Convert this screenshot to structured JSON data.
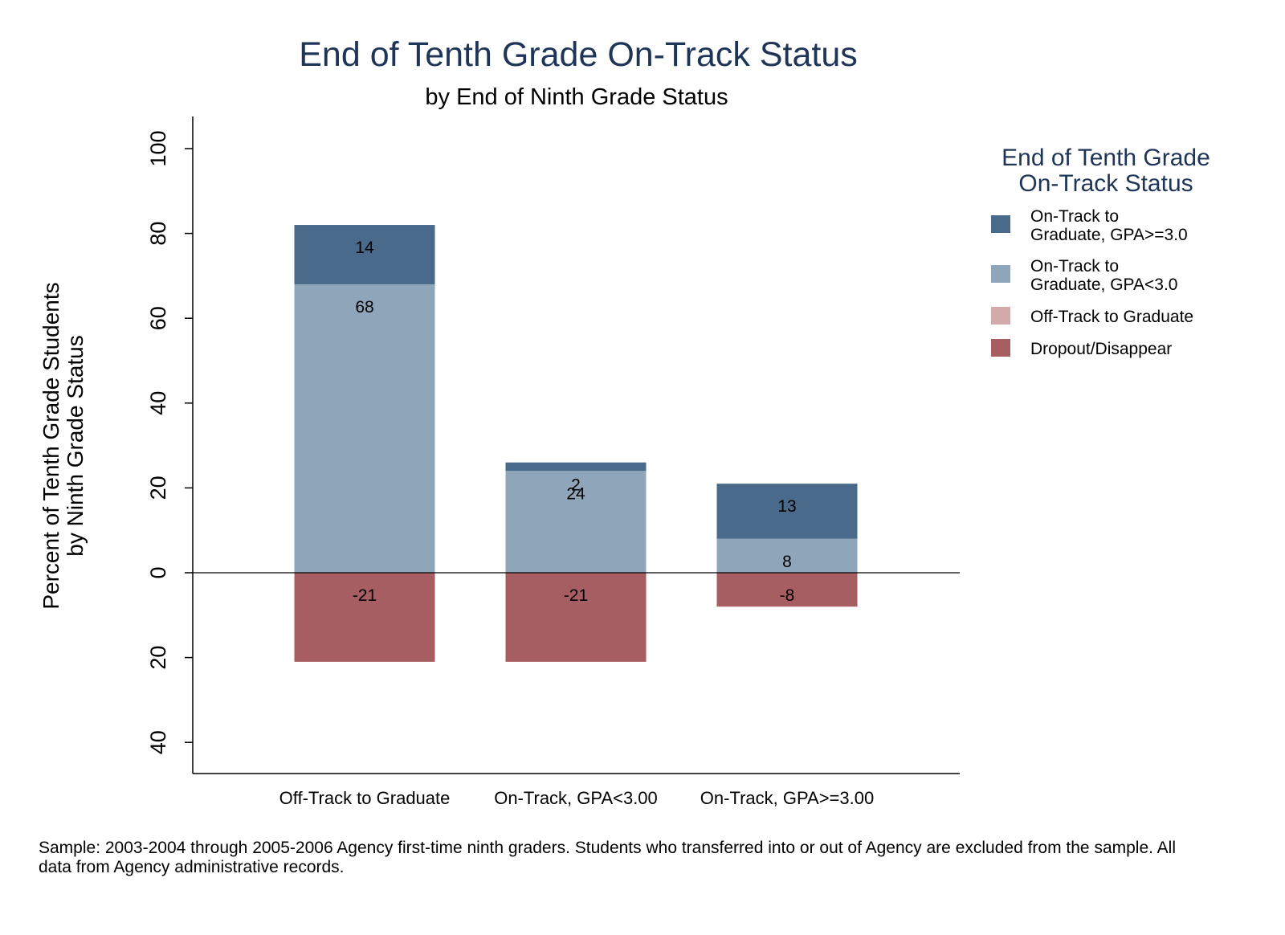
{
  "chart_data": {
    "type": "bar",
    "stacked": true,
    "title": "End of Tenth Grade On-Track Status",
    "subtitle": "by End of Ninth Grade Status",
    "ylabel": [
      "Percent of Tenth Grade Students",
      "by Ninth Grade Status"
    ],
    "xlabel": "",
    "ylim": [
      -48,
      108
    ],
    "yticks": [
      {
        "value": 100,
        "label": "100"
      },
      {
        "value": 80,
        "label": "80"
      },
      {
        "value": 60,
        "label": "60"
      },
      {
        "value": 40,
        "label": "40"
      },
      {
        "value": 20,
        "label": "20"
      },
      {
        "value": 0,
        "label": "0"
      },
      {
        "value": -20,
        "label": "20"
      },
      {
        "value": -40,
        "label": "40"
      }
    ],
    "categories": [
      "Off-Track to Graduate",
      "On-Track, GPA<3.00",
      "On-Track, GPA>=3.00"
    ],
    "series": [
      {
        "name": "On-Track to Graduate, GPA>=3.0",
        "legend_lines": [
          "On-Track to",
          "Graduate, GPA>=3.0"
        ],
        "color": "#4a6a8b",
        "values": [
          14,
          2,
          13
        ],
        "labels": [
          "14",
          "2",
          "13"
        ],
        "direction": "up"
      },
      {
        "name": "On-Track to Graduate, GPA<3.0",
        "legend_lines": [
          "On-Track to",
          "Graduate, GPA<3.0"
        ],
        "color": "#8fa5b9",
        "values": [
          68,
          24,
          8
        ],
        "labels": [
          "68",
          "24",
          "8"
        ],
        "direction": "up"
      },
      {
        "name": "Off-Track to Graduate",
        "legend_lines": [
          "Off-Track to Graduate"
        ],
        "color": "#d3aaaa",
        "values": [
          0,
          0,
          0
        ],
        "labels": [
          "0",
          "0",
          "0"
        ],
        "direction": "down"
      },
      {
        "name": "Dropout/Disappear",
        "legend_lines": [
          "Dropout/Disappear"
        ],
        "color": "#a65e62",
        "values": [
          -21,
          -21,
          -8
        ],
        "labels": [
          "-21",
          "-21",
          "-8"
        ],
        "direction": "down"
      }
    ],
    "legend": {
      "title": [
        "End of Tenth Grade",
        "On-Track Status"
      ],
      "placement": "right"
    },
    "grid": false
  },
  "note": "Sample: 2003-2004 through 2005-2006 Agency first-time ninth graders. Students who transferred into or out of Agency are excluded from the sample. All data from Agency administrative records."
}
